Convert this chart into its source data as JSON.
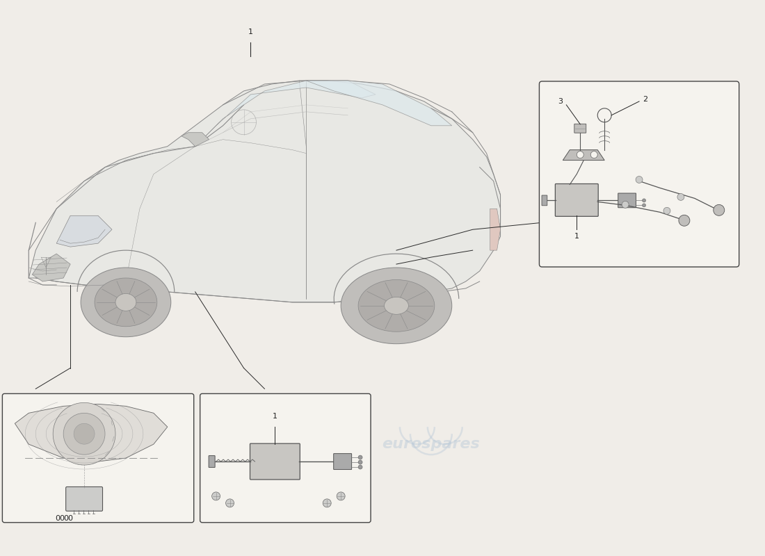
{
  "background_color": "#f0ede8",
  "watermark_text": "eurospares",
  "watermark_color_top": "#b8c8d8",
  "watermark_color_bot": "#b8c8d8",
  "line_color": "#2a2a2a",
  "car_line_color": "#888888",
  "car_fill": "#e8e8e4",
  "box_fill": "#f5f3ee",
  "box_edge": "#444444",
  "part_label_color": "#222222",
  "detail_line": "#555555"
}
